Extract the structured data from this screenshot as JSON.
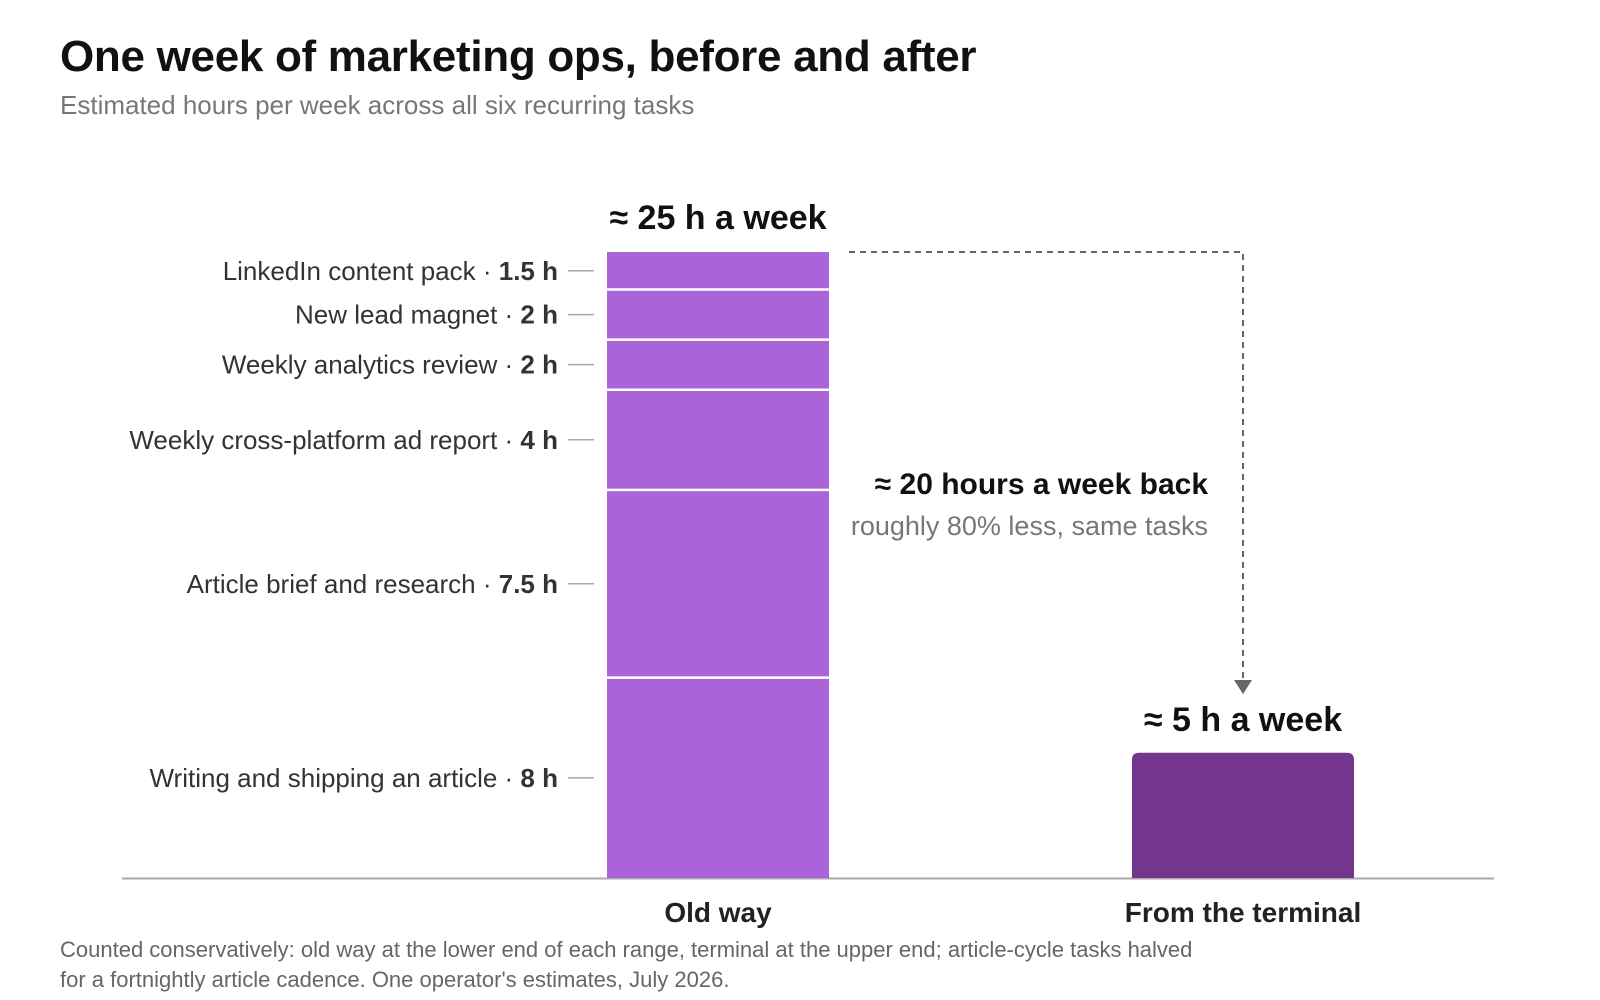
{
  "title": "One week of marketing ops, before and after",
  "subtitle": "Estimated hours per week across all six recurring tasks",
  "footnote_line1": "Counted conservatively: old way at the lower end of each range, terminal at the upper end; article-cycle tasks halved",
  "footnote_line2": "for a fortnightly article cadence. One operator's estimates, July 2026.",
  "colors": {
    "old_bar": "#ab63d9",
    "new_bar": "#73368c",
    "axis": "#aaaaaa",
    "leader": "#aaaaaa",
    "arrow": "#666666"
  },
  "chart_data": {
    "type": "bar",
    "categories": [
      "Old way",
      "From the terminal"
    ],
    "ylim": [
      0,
      25
    ],
    "stacks": [
      {
        "category": "Old way",
        "total_label": "≈ 25 h a week",
        "segments": [
          {
            "name": "Writing and shipping an article",
            "value": 8,
            "value_label": "8 h"
          },
          {
            "name": "Article brief and research",
            "value": 7.5,
            "value_label": "7.5 h"
          },
          {
            "name": "Weekly cross-platform ad report",
            "value": 4,
            "value_label": "4 h"
          },
          {
            "name": "Weekly analytics review",
            "value": 2,
            "value_label": "2 h"
          },
          {
            "name": "New lead magnet",
            "value": 2,
            "value_label": "2 h"
          },
          {
            "name": "LinkedIn content pack",
            "value": 1.5,
            "value_label": "1.5 h"
          }
        ]
      },
      {
        "category": "From the terminal",
        "total_label": "≈ 5 h a week",
        "segments": [
          {
            "name": "",
            "value": 5,
            "value_label": ""
          }
        ]
      }
    ],
    "annotation": {
      "headline": "≈ 20 hours a week back",
      "detail": "roughly 80% less, same tasks"
    },
    "xlabel": "",
    "ylabel": "",
    "grid": false
  }
}
